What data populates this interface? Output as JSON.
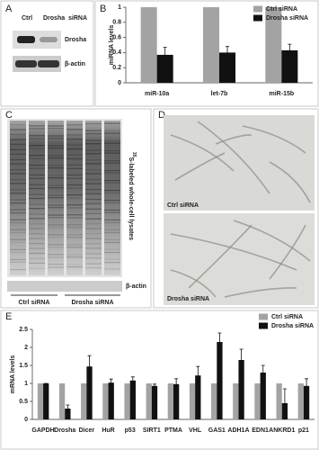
{
  "panels": {
    "A": {
      "label": "A",
      "lane_labels": [
        "Ctrl",
        "Drosha",
        "siRNA"
      ],
      "band_labels": [
        "Drosha",
        "β-actin"
      ]
    },
    "C": {
      "label": "C",
      "ylabel_sup": "35",
      "ylabel": "S-labeled whole-cell lysates",
      "band_label": "β-actin",
      "group_labels": [
        "Ctrl siRNA",
        "Drosha siRNA"
      ]
    },
    "D": {
      "label": "D",
      "image_labels": [
        "Ctrl siRNA",
        "Drosha siRNA"
      ]
    }
  },
  "chart_data": [
    {
      "type": "bar",
      "panel_label": "B",
      "ylabel": "miRNA levels",
      "categories": [
        "miR-10a",
        "let-7b",
        "miR-15b"
      ],
      "series": [
        {
          "name": "Ctrl siRNA",
          "color": "#a3a3a3",
          "values": [
            1,
            1,
            1
          ]
        },
        {
          "name": "Drosha siRNA",
          "color": "#111111",
          "values": [
            0.37,
            0.4,
            0.43
          ],
          "errors": [
            0.1,
            0.08,
            0.08
          ]
        }
      ],
      "ylim": [
        0,
        1
      ],
      "yticks": [
        0,
        0.2,
        0.4,
        0.6,
        0.8,
        1
      ]
    },
    {
      "type": "bar",
      "panel_label": "E",
      "ylabel": "mRNA levels",
      "categories": [
        "GAPDH",
        "Drosha",
        "Dicer",
        "HuR",
        "p53",
        "SIRT1",
        "PTMA",
        "VHL",
        "GAS1",
        "ADH1A",
        "EDN1",
        "ANKRD1",
        "p21"
      ],
      "series": [
        {
          "name": "Ctrl siRNA",
          "color": "#a3a3a3",
          "values": [
            1,
            1,
            1,
            1,
            1,
            1,
            1,
            1,
            1,
            1,
            1,
            1,
            1
          ]
        },
        {
          "name": "Drosha siRNA",
          "color": "#111111",
          "values": [
            1,
            0.3,
            1.47,
            1.02,
            1.08,
            0.93,
            0.98,
            1.22,
            2.15,
            1.65,
            1.3,
            0.45,
            0.93
          ],
          "errors": [
            0,
            0.1,
            0.3,
            0.1,
            0.1,
            0.05,
            0.15,
            0.25,
            0.25,
            0.3,
            0.2,
            0.4,
            0.2
          ]
        }
      ],
      "ylim": [
        0,
        2.5
      ],
      "yticks": [
        0,
        0.5,
        1,
        1.5,
        2,
        2.5
      ]
    }
  ]
}
